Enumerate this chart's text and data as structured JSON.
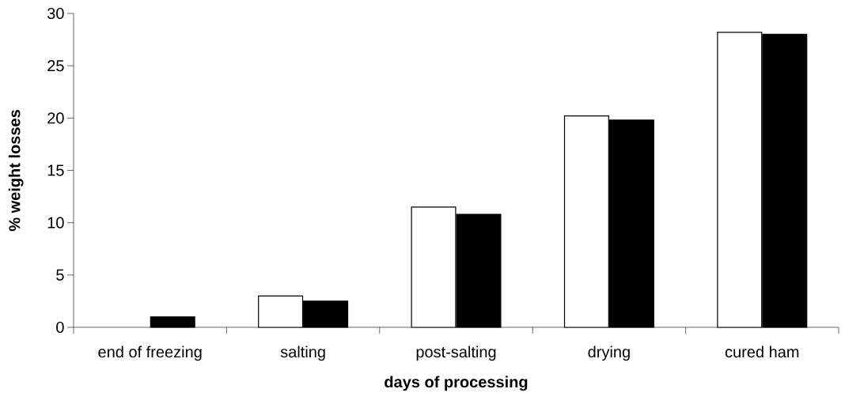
{
  "chart_data": {
    "type": "bar",
    "xlabel": "days of processing",
    "ylabel": "% weight losses",
    "categories": [
      "end of freezing",
      "salting",
      "post-salting",
      "drying",
      "cured ham"
    ],
    "series": [
      {
        "color": "#ffffff",
        "values": [
          null,
          3.0,
          11.5,
          20.2,
          28.2
        ]
      },
      {
        "color": "#000000",
        "values": [
          1.0,
          2.5,
          10.8,
          19.8,
          28.0
        ]
      }
    ],
    "ylim": [
      0,
      30
    ],
    "yticks": [
      0,
      5,
      10,
      15,
      20,
      25,
      30
    ],
    "grid": false
  }
}
